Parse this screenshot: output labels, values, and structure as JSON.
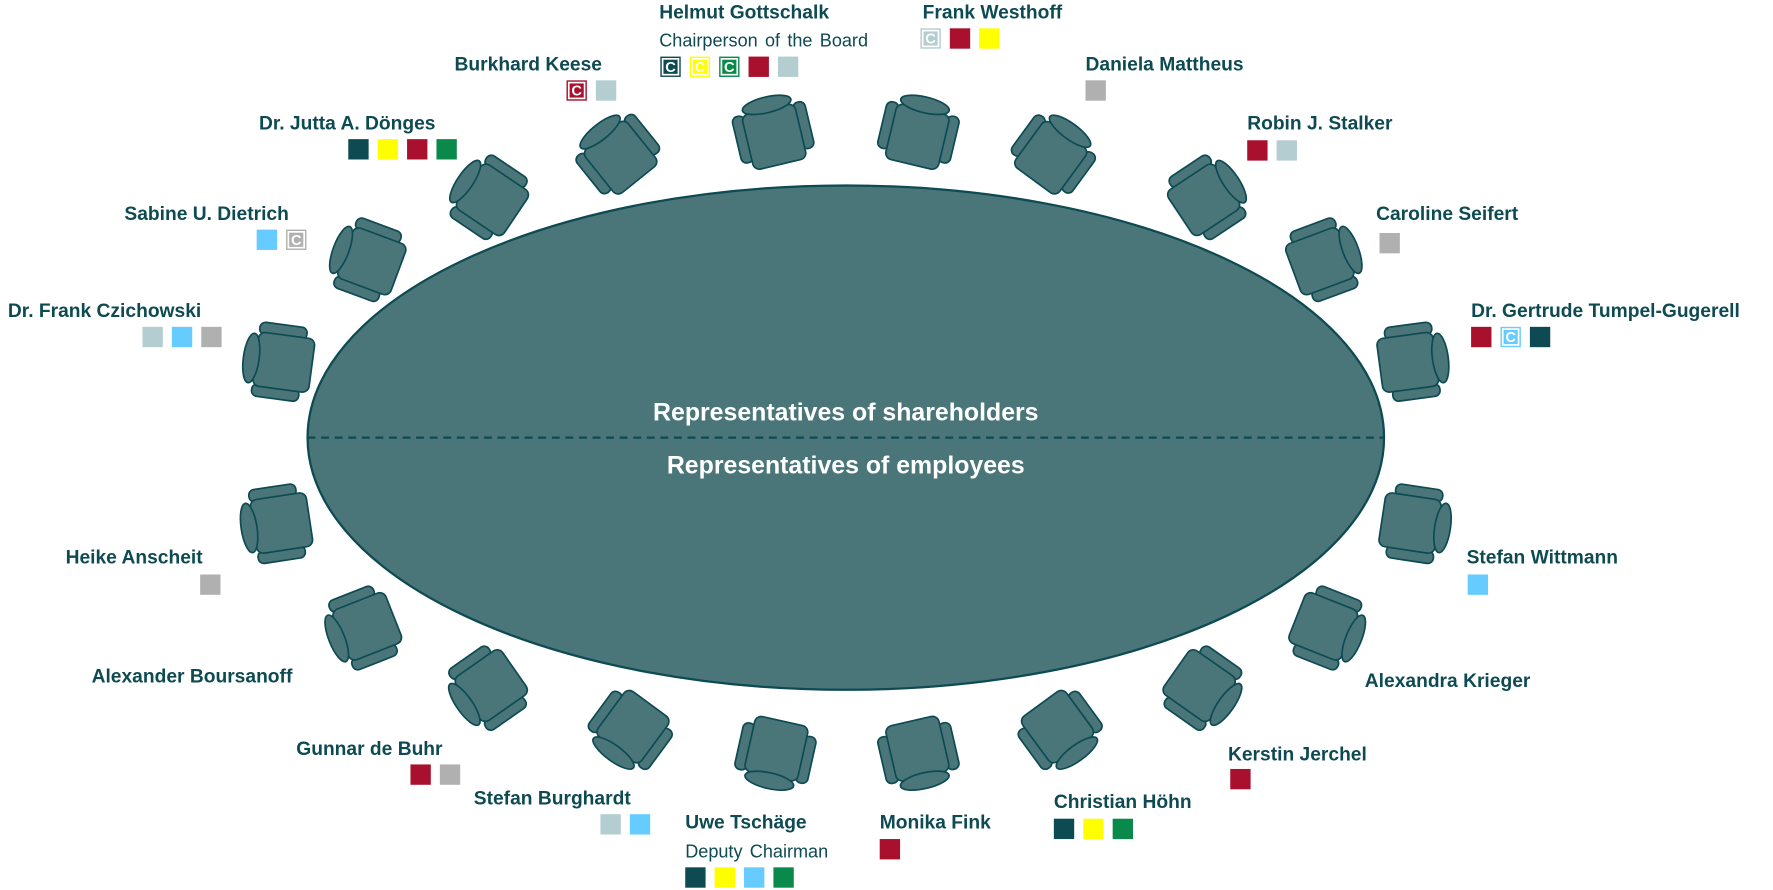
{
  "table": {
    "upper_label": "Representatives of shareholders",
    "lower_label": "Representatives of employees"
  },
  "members": [
    {
      "name": "Helmut Gottschalk",
      "role": "Chairperson of the Board",
      "badges": [
        {
          "color": "#0d4a52",
          "label": "C"
        },
        {
          "color": "#ffff00",
          "label": "C"
        },
        {
          "color": "#0a8a4a",
          "label": "C"
        },
        {
          "color": "#a8102e"
        },
        {
          "color": "#b4cdd1"
        }
      ]
    },
    {
      "name": "Frank Westhoff",
      "badges": [
        {
          "color": "#b4cdd1",
          "label": "C"
        },
        {
          "color": "#a8102e"
        },
        {
          "color": "#ffff00"
        }
      ]
    },
    {
      "name": "Burkhard Keese",
      "badges": [
        {
          "color": "#a8102e",
          "label": "C"
        },
        {
          "color": "#b4cdd1"
        }
      ]
    },
    {
      "name": "Daniela Mattheus",
      "badges": [
        {
          "color": "#b0b0b0"
        }
      ]
    },
    {
      "name": "Dr. Jutta A. Dönges",
      "badges": [
        {
          "color": "#0d4a52"
        },
        {
          "color": "#ffff00"
        },
        {
          "color": "#a8102e"
        },
        {
          "color": "#0a8a4a"
        }
      ]
    },
    {
      "name": "Robin J. Stalker",
      "badges": [
        {
          "color": "#a8102e"
        },
        {
          "color": "#b4cdd1"
        }
      ]
    },
    {
      "name": "Sabine U. Dietrich",
      "badges": [
        {
          "color": "#66ccff"
        },
        {
          "color": "#b0b0b0",
          "label": "C"
        }
      ]
    },
    {
      "name": "Caroline Seifert",
      "badges": [
        {
          "color": "#b0b0b0"
        }
      ]
    },
    {
      "name": "Dr. Frank Czichowski",
      "badges": [
        {
          "color": "#b4cdd1"
        },
        {
          "color": "#66ccff"
        },
        {
          "color": "#b0b0b0"
        }
      ]
    },
    {
      "name": "Dr. Gertrude Tumpel-Gugerell",
      "badges": [
        {
          "color": "#a8102e"
        },
        {
          "color": "#66ccff",
          "label": "C"
        },
        {
          "color": "#0d4a52"
        }
      ]
    },
    {
      "name": "Heike Anscheit",
      "badges": [
        {
          "color": "#b0b0b0"
        }
      ]
    },
    {
      "name": "Stefan Wittmann",
      "badges": [
        {
          "color": "#66ccff"
        }
      ]
    },
    {
      "name": "Alexander Boursanoff",
      "badges": []
    },
    {
      "name": "Alexandra Krieger",
      "badges": []
    },
    {
      "name": "Gunnar de Buhr",
      "badges": [
        {
          "color": "#a8102e"
        },
        {
          "color": "#b0b0b0"
        }
      ]
    },
    {
      "name": "Kerstin Jerchel",
      "badges": [
        {
          "color": "#a8102e"
        }
      ]
    },
    {
      "name": "Stefan Burghardt",
      "badges": [
        {
          "color": "#b4cdd1"
        },
        {
          "color": "#66ccff"
        }
      ]
    },
    {
      "name": "Christian Höhn",
      "badges": [
        {
          "color": "#0d4a52"
        },
        {
          "color": "#ffff00"
        },
        {
          "color": "#0a8a4a"
        }
      ]
    },
    {
      "name": "Uwe Tschäge",
      "role": "Deputy Chairman",
      "badges": [
        {
          "color": "#0d4a52"
        },
        {
          "color": "#ffff00"
        },
        {
          "color": "#66ccff"
        },
        {
          "color": "#0a8a4a"
        }
      ]
    },
    {
      "name": "Monika Fink",
      "badges": [
        {
          "color": "#a8102e"
        }
      ]
    }
  ]
}
